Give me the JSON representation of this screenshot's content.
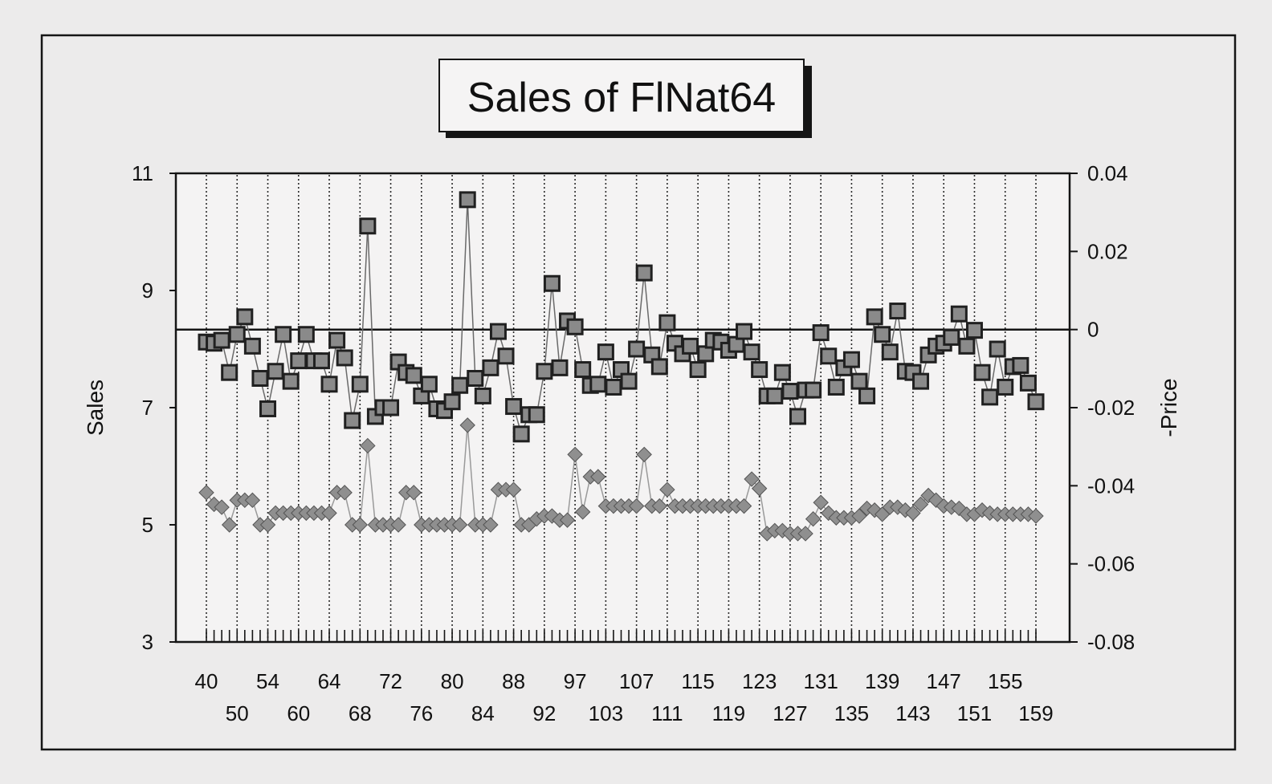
{
  "chart_data": {
    "type": "line",
    "title": "Sales of FlNat64",
    "xlabel": "",
    "ylabel": "Sales",
    "y2label": "-Price",
    "ylim": [
      3,
      11
    ],
    "y2lim": [
      -0.08,
      0.04
    ],
    "yticks": [
      3,
      5,
      7,
      9,
      11
    ],
    "y2ticks": [
      "-0.08",
      "-0.06",
      "-0.04",
      "-0.02",
      "0",
      "0.02",
      "0.04"
    ],
    "x_tick_labels_row1": [
      "40",
      "54",
      "64",
      "72",
      "80",
      "88",
      "97",
      "107",
      "115",
      "123",
      "131",
      "139",
      "147",
      "155"
    ],
    "x_tick_labels_row2": [
      "50",
      "60",
      "68",
      "76",
      "84",
      "92",
      "103",
      "111",
      "119",
      "127",
      "135",
      "143",
      "151",
      "159"
    ],
    "grid": "vertical dotted",
    "reference_line": {
      "axis": "y2",
      "value": 0
    },
    "series": [
      {
        "axis": "y",
        "marker": "square",
        "color": "#202020",
        "values": [
          8.12,
          8.1,
          8.15,
          7.6,
          8.25,
          8.55,
          8.05,
          7.5,
          6.98,
          7.62,
          8.25,
          7.45,
          7.8,
          8.25,
          7.8,
          7.8,
          7.4,
          8.15,
          7.85,
          6.78,
          7.4,
          10.1,
          6.85,
          7.0,
          7.0,
          7.78,
          7.6,
          7.55,
          7.2,
          7.4,
          6.98,
          6.95,
          7.1,
          7.38,
          10.55,
          7.5,
          7.2,
          7.68,
          8.3,
          7.88,
          7.02,
          6.55,
          6.88,
          6.88,
          7.62,
          9.12,
          7.68,
          8.48,
          8.38,
          7.65,
          7.38,
          7.4,
          7.95,
          7.35,
          7.65,
          7.45,
          8.0,
          9.3,
          7.9,
          7.7,
          8.45,
          8.1,
          7.92,
          8.05,
          7.65,
          7.92,
          8.15,
          8.12,
          7.98,
          8.08,
          8.3,
          7.95,
          7.65,
          7.2,
          7.2,
          7.6,
          7.28,
          6.85,
          7.3,
          7.3,
          8.28,
          7.88,
          7.35,
          7.68,
          7.82,
          7.45,
          7.2,
          8.55,
          8.25,
          7.95,
          8.65,
          7.62,
          7.6,
          7.45,
          7.9,
          8.05,
          8.1,
          8.2,
          8.6,
          8.05,
          8.32,
          7.6,
          7.18,
          8.0,
          7.35,
          7.7,
          7.72,
          7.42,
          7.1
        ]
      },
      {
        "axis": "y",
        "marker": "diamond",
        "color": "#8f8f8f",
        "values": [
          5.55,
          5.35,
          5.3,
          5.0,
          5.42,
          5.42,
          5.42,
          5.0,
          5.0,
          5.2,
          5.2,
          5.2,
          5.2,
          5.2,
          5.2,
          5.2,
          5.2,
          5.55,
          5.55,
          5.0,
          5.0,
          6.35,
          5.0,
          5.0,
          5.0,
          5.0,
          5.55,
          5.55,
          5.0,
          5.0,
          5.0,
          5.0,
          5.0,
          5.0,
          6.7,
          5.0,
          5.0,
          5.0,
          5.6,
          5.6,
          5.6,
          5.0,
          5.0,
          5.1,
          5.15,
          5.15,
          5.08,
          5.08,
          6.2,
          5.22,
          5.82,
          5.82,
          5.32,
          5.32,
          5.32,
          5.32,
          5.32,
          6.2,
          5.32,
          5.32,
          5.6,
          5.32,
          5.32,
          5.32,
          5.32,
          5.32,
          5.32,
          5.32,
          5.32,
          5.32,
          5.32,
          5.78,
          5.62,
          4.85,
          4.9,
          4.9,
          4.85,
          4.85,
          4.85,
          5.1,
          5.38,
          5.2,
          5.12,
          5.12,
          5.12,
          5.15,
          5.28,
          5.25,
          5.18,
          5.3,
          5.3,
          5.25,
          5.2,
          5.35,
          5.5,
          5.42,
          5.32,
          5.3,
          5.28,
          5.18,
          5.18,
          5.25,
          5.2,
          5.18,
          5.18,
          5.18,
          5.18,
          5.18,
          5.15
        ]
      }
    ]
  }
}
